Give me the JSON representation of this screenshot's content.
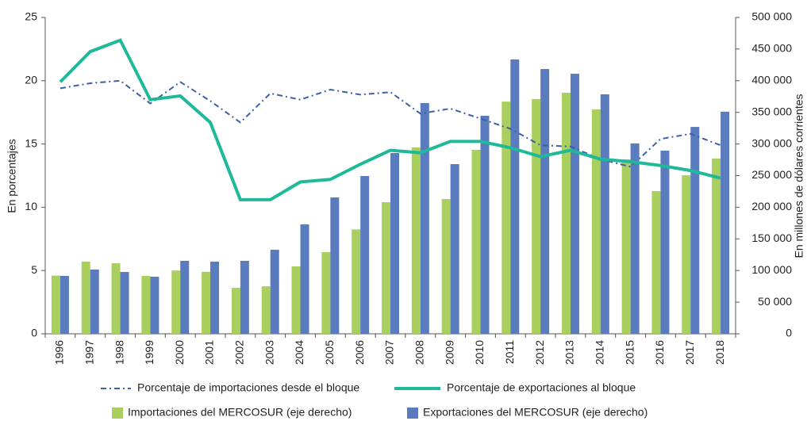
{
  "chart_data": {
    "type": "bar",
    "categories": [
      "1996",
      "1997",
      "1998",
      "1999",
      "2000",
      "2001",
      "2002",
      "2003",
      "2004",
      "2005",
      "2006",
      "2007",
      "2008",
      "2009",
      "2010",
      "2011",
      "2012",
      "2013",
      "2014",
      "2015",
      "2016",
      "2017",
      "2018"
    ],
    "ylabel": "En porcentajes",
    "y2label": "En millones de dólares corrientes",
    "ylim": [
      0,
      25
    ],
    "yticks": [
      0,
      5,
      10,
      15,
      20,
      25
    ],
    "y2lim": [
      0,
      500000
    ],
    "y2ticks": [
      0,
      {
        "value": 50000,
        "label": "50 000"
      },
      {
        "value": 100000,
        "label": "100 000"
      },
      {
        "value": 150000,
        "label": "150 000"
      },
      {
        "value": 200000,
        "label": "200 000"
      },
      {
        "value": 250000,
        "label": "250 000"
      },
      {
        "value": 300000,
        "label": "300 000"
      },
      {
        "value": 350000,
        "label": "350 000"
      },
      {
        "value": 400000,
        "label": "400 000"
      },
      {
        "value": 450000,
        "label": "450 000"
      },
      {
        "value": 500000,
        "label": "500 000"
      }
    ],
    "series": [
      {
        "name": "Porcentaje de importaciones desde el bloque",
        "type": "line",
        "style": "dashdot",
        "color": "#3d5fa8",
        "values": [
          19.4,
          19.8,
          20.0,
          18.2,
          19.9,
          18.4,
          16.7,
          19.0,
          18.5,
          19.3,
          18.9,
          19.1,
          17.4,
          17.8,
          17.0,
          16.2,
          14.9,
          14.8,
          13.8,
          13.2,
          15.4,
          15.8,
          14.9
        ]
      },
      {
        "name": "Porcentaje de exportaciones al bloque",
        "type": "line",
        "style": "solid",
        "color": "#1fb99a",
        "values": [
          19.9,
          22.3,
          23.2,
          18.5,
          18.8,
          16.7,
          10.6,
          10.6,
          12.0,
          12.2,
          13.4,
          14.5,
          14.3,
          15.2,
          15.2,
          14.7,
          14.0,
          14.5,
          13.8,
          13.6,
          13.3,
          12.9,
          12.3
        ]
      },
      {
        "name": "Importaciones del MERCOSUR (eje derecho)",
        "type": "bar",
        "axis": "y2",
        "color": "#a9cf5f",
        "values": [
          92000,
          114000,
          111500,
          91500,
          100000,
          98000,
          72700,
          75000,
          106500,
          129000,
          165000,
          208000,
          294500,
          213000,
          290700,
          367000,
          371000,
          381000,
          354600,
          275700,
          225600,
          250600,
          277000
        ]
      },
      {
        "name": "Exportaciones del MERCOSUR (eje derecho)",
        "type": "bar",
        "axis": "y2",
        "color": "#5b7bbf",
        "values": [
          91500,
          101500,
          97700,
          90200,
          115300,
          114000,
          115300,
          132800,
          173000,
          215500,
          249400,
          285700,
          364700,
          268200,
          344600,
          433600,
          418500,
          411000,
          378500,
          300800,
          289500,
          327000,
          351000
        ]
      }
    ]
  }
}
